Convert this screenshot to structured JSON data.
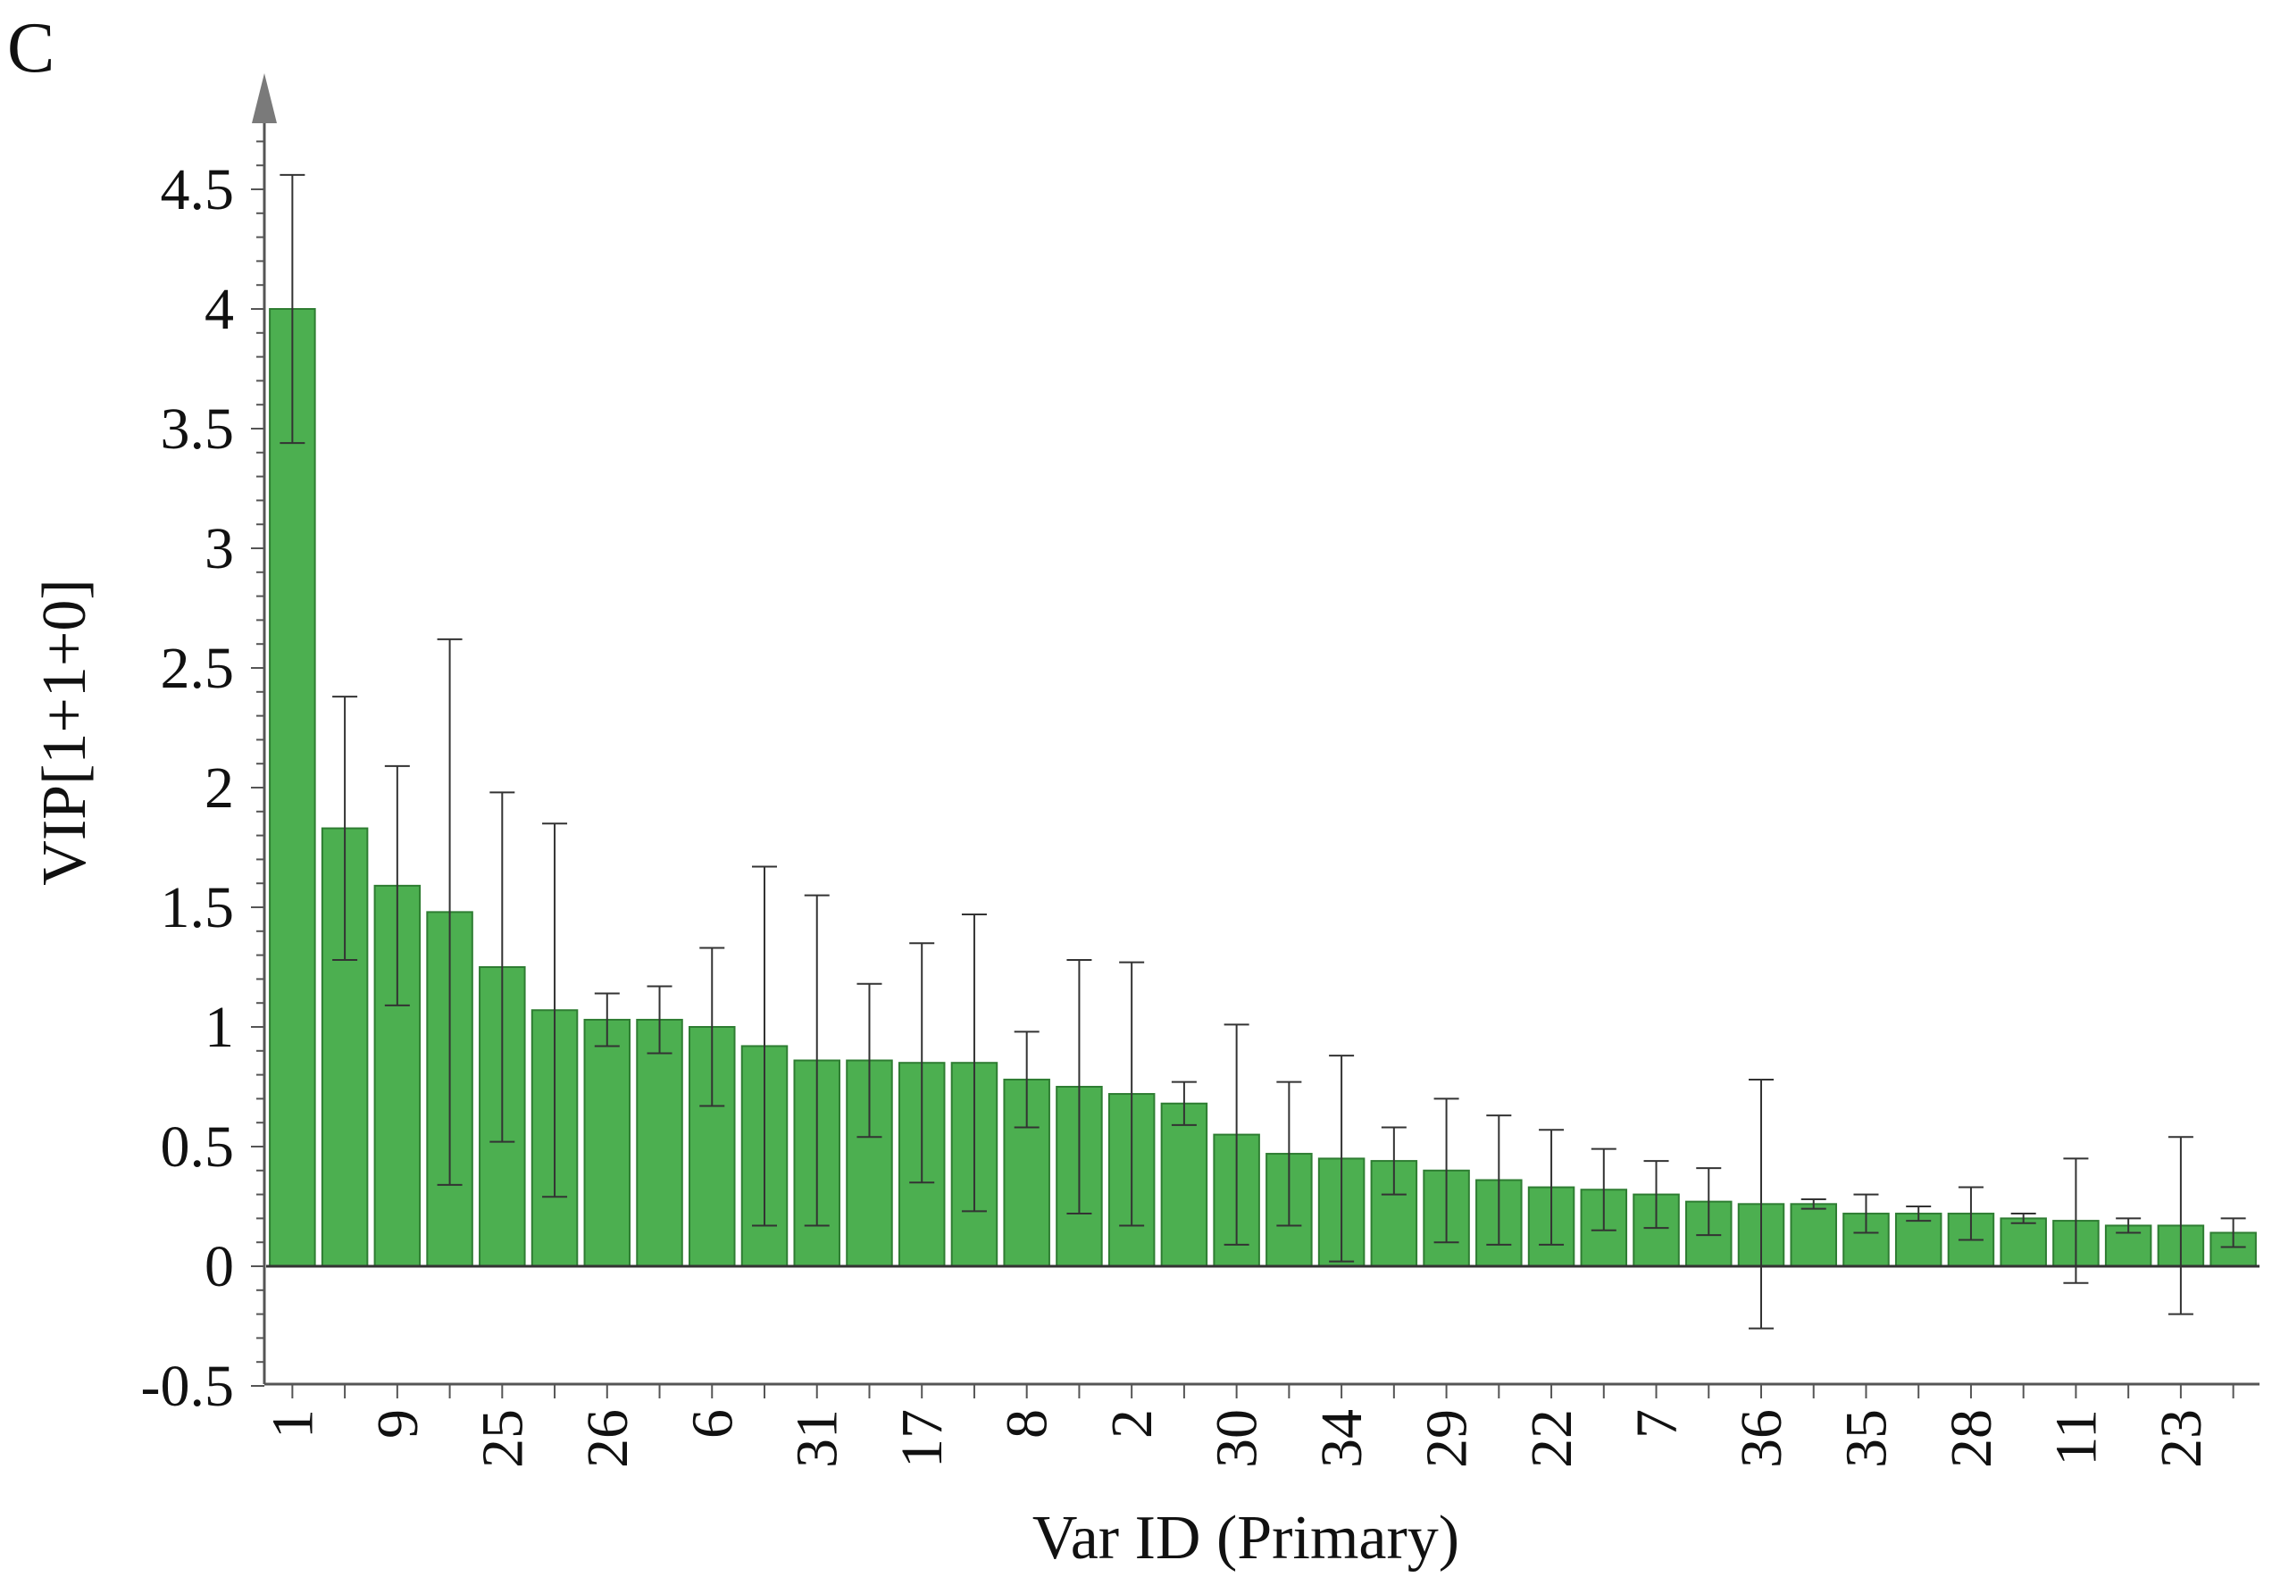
{
  "panel_label": "C",
  "chart_data": {
    "type": "bar",
    "xlabel": "Var ID (Primary)",
    "ylabel": "VIP[1+1+0]",
    "ylim": [
      -0.5,
      4.8
    ],
    "yticks": [
      "4.5",
      "4",
      "3.5",
      "3",
      "2.5",
      "2",
      "1.5",
      "1",
      "0.5",
      "0",
      "-0.5"
    ],
    "ytick_values": [
      4.5,
      4,
      3.5,
      3,
      2.5,
      2,
      1.5,
      1,
      0.5,
      0,
      -0.5
    ],
    "bar_color": "#4caf50",
    "bar_edge_color": "#2e7d32",
    "error_color": "#333333",
    "grid": false,
    "categories": [
      "1",
      "",
      "9",
      "",
      "25",
      "",
      "26",
      "",
      "6",
      "",
      "31",
      "",
      "17",
      "",
      "8",
      "",
      "2",
      "",
      "30",
      "",
      "34",
      "",
      "29",
      "",
      "22",
      "",
      "7",
      "",
      "36",
      "",
      "35",
      "",
      "28",
      "",
      "11",
      "",
      "23",
      ""
    ],
    "values": [
      4.0,
      1.83,
      1.59,
      1.48,
      1.25,
      1.07,
      1.03,
      1.03,
      1.0,
      0.92,
      0.86,
      0.86,
      0.85,
      0.85,
      0.78,
      0.75,
      0.72,
      0.68,
      0.55,
      0.47,
      0.45,
      0.44,
      0.4,
      0.36,
      0.33,
      0.32,
      0.3,
      0.27,
      0.26,
      0.26,
      0.22,
      0.22,
      0.22,
      0.2,
      0.19,
      0.17,
      0.17,
      0.14
    ],
    "errors": [
      0.56,
      0.55,
      0.5,
      1.14,
      0.73,
      0.78,
      0.11,
      0.14,
      0.33,
      0.75,
      0.69,
      0.32,
      0.5,
      0.62,
      0.2,
      0.53,
      0.55,
      0.09,
      0.46,
      0.3,
      0.43,
      0.14,
      0.3,
      0.27,
      0.24,
      0.17,
      0.14,
      0.14,
      0.52,
      0.02,
      0.08,
      0.03,
      0.11,
      0.02,
      0.26,
      0.03,
      0.37,
      0.06
    ]
  }
}
